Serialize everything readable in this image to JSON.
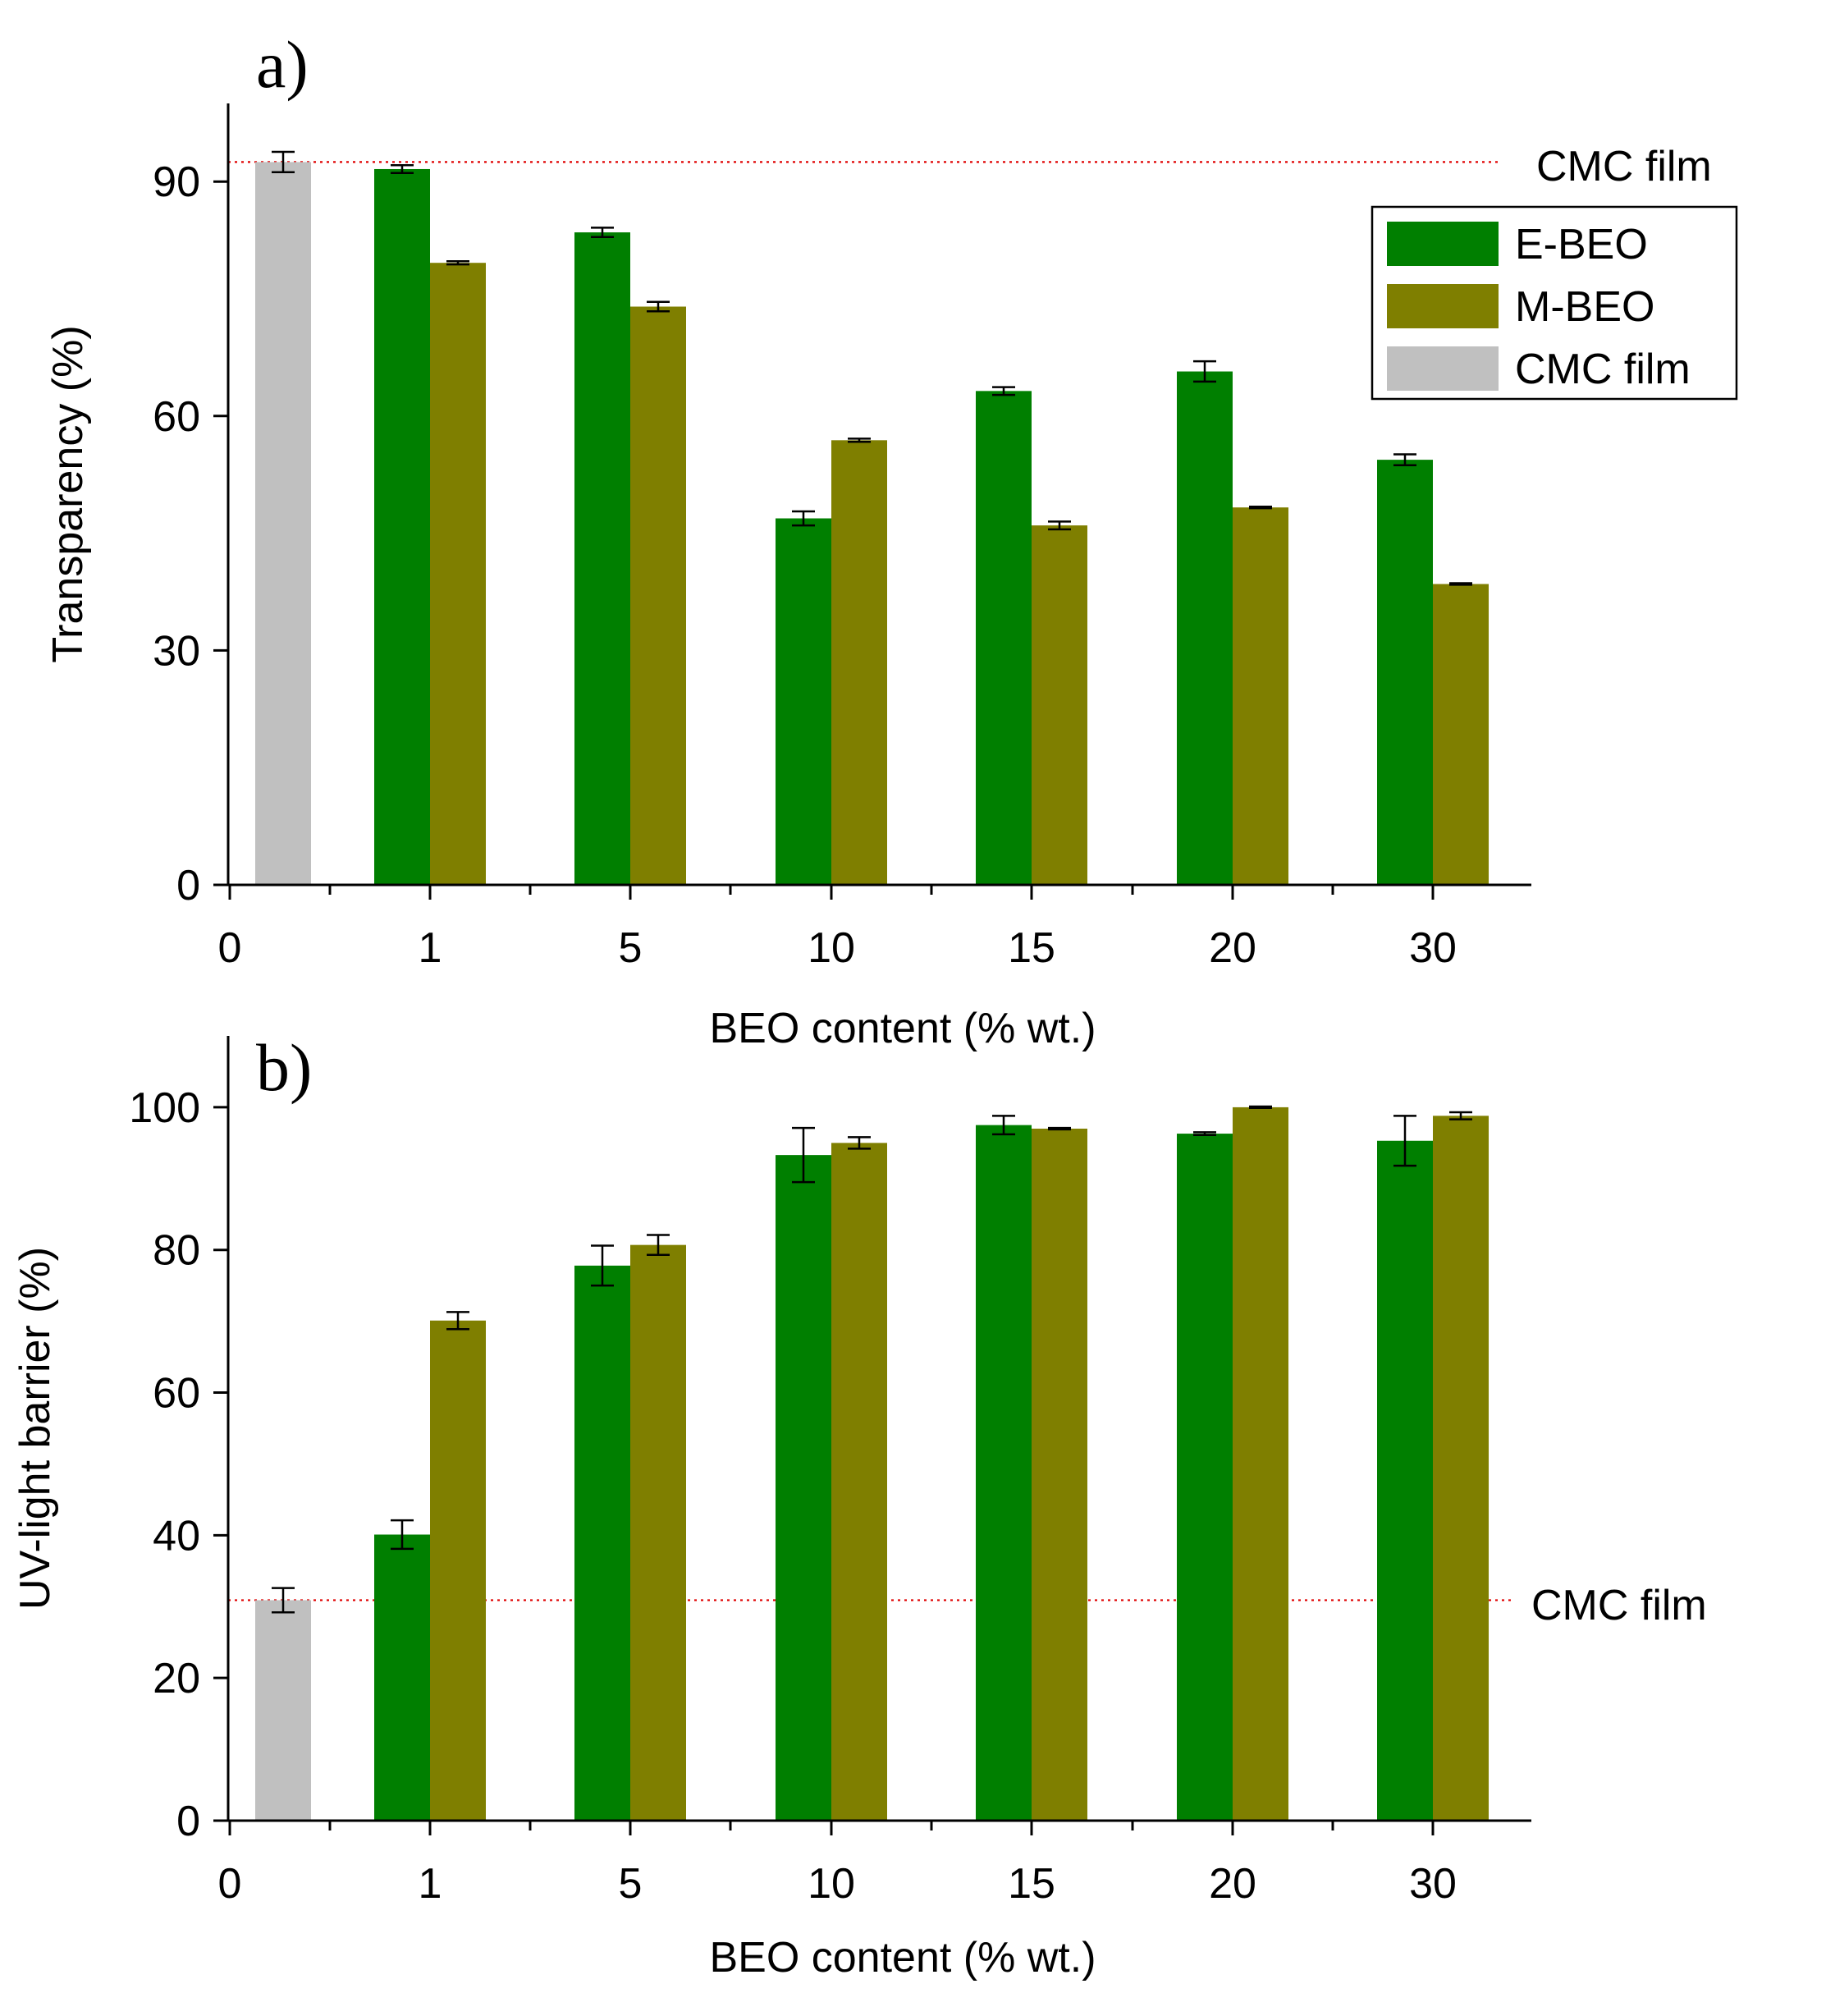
{
  "colors": {
    "e_beo": "#007f00",
    "m_beo": "#7f7f00",
    "cmc": "#c0c0c0",
    "ref_line": "#e00000",
    "axis": "#000000"
  },
  "chart_data": [
    {
      "type": "bar",
      "panel_label": "a)",
      "title": "",
      "xlabel": "BEO content (% wt.)",
      "ylabel": "Transparency (%)",
      "ylim": [
        0,
        100
      ],
      "yticks": [
        "0",
        "30",
        "60",
        "90"
      ],
      "ytick_values": [
        0,
        30,
        60,
        90
      ],
      "categories": [
        "0",
        "1",
        "5",
        "10",
        "15",
        "20",
        "30"
      ],
      "series": [
        {
          "name": "E-BEO",
          "values": [
            null,
            91.6,
            83.5,
            46.9,
            63.2,
            65.7,
            54.4
          ],
          "errors": [
            null,
            0.5,
            0.6,
            0.9,
            0.5,
            1.3,
            0.7
          ]
        },
        {
          "name": "M-BEO",
          "values": [
            null,
            79.6,
            74.0,
            56.9,
            46.0,
            48.3,
            38.5
          ],
          "errors": [
            null,
            0.2,
            0.6,
            0.2,
            0.5,
            0.1,
            0.1
          ]
        },
        {
          "name": "CMC film",
          "values": [
            92.5,
            null,
            null,
            null,
            null,
            null,
            null
          ],
          "errors": [
            1.3,
            null,
            null,
            null,
            null,
            null,
            null
          ]
        }
      ],
      "reference_line": {
        "label": "CMC film",
        "value": 92.5
      },
      "legend": [
        "E-BEO",
        "M-BEO",
        "CMC film"
      ],
      "legend_position": "top-right"
    },
    {
      "type": "bar",
      "panel_label": "b)",
      "title": "",
      "xlabel": "BEO content (% wt.)",
      "ylabel": "UV-light barrier (%)",
      "ylim": [
        0,
        110
      ],
      "yticks": [
        "0",
        "20",
        "40",
        "60",
        "80",
        "100"
      ],
      "ytick_values": [
        0,
        20,
        40,
        60,
        80,
        100
      ],
      "categories": [
        "0",
        "1",
        "5",
        "10",
        "15",
        "20",
        "30"
      ],
      "series": [
        {
          "name": "E-BEO",
          "values": [
            null,
            40.1,
            77.8,
            93.3,
            97.5,
            96.3,
            95.3
          ],
          "errors": [
            null,
            2.0,
            2.8,
            3.8,
            1.3,
            0.2,
            3.5
          ]
        },
        {
          "name": "M-BEO",
          "values": [
            null,
            70.1,
            80.7,
            95.0,
            97.0,
            100.0,
            98.8
          ],
          "errors": [
            null,
            1.2,
            1.4,
            0.8,
            0.1,
            0.1,
            0.5
          ]
        },
        {
          "name": "CMC film",
          "values": [
            30.9,
            null,
            null,
            null,
            null,
            null,
            null
          ],
          "errors": [
            1.7,
            null,
            null,
            null,
            null,
            null,
            null
          ]
        }
      ],
      "reference_line": {
        "label": "CMC film",
        "value": 30.9
      },
      "legend_position": "none"
    }
  ]
}
